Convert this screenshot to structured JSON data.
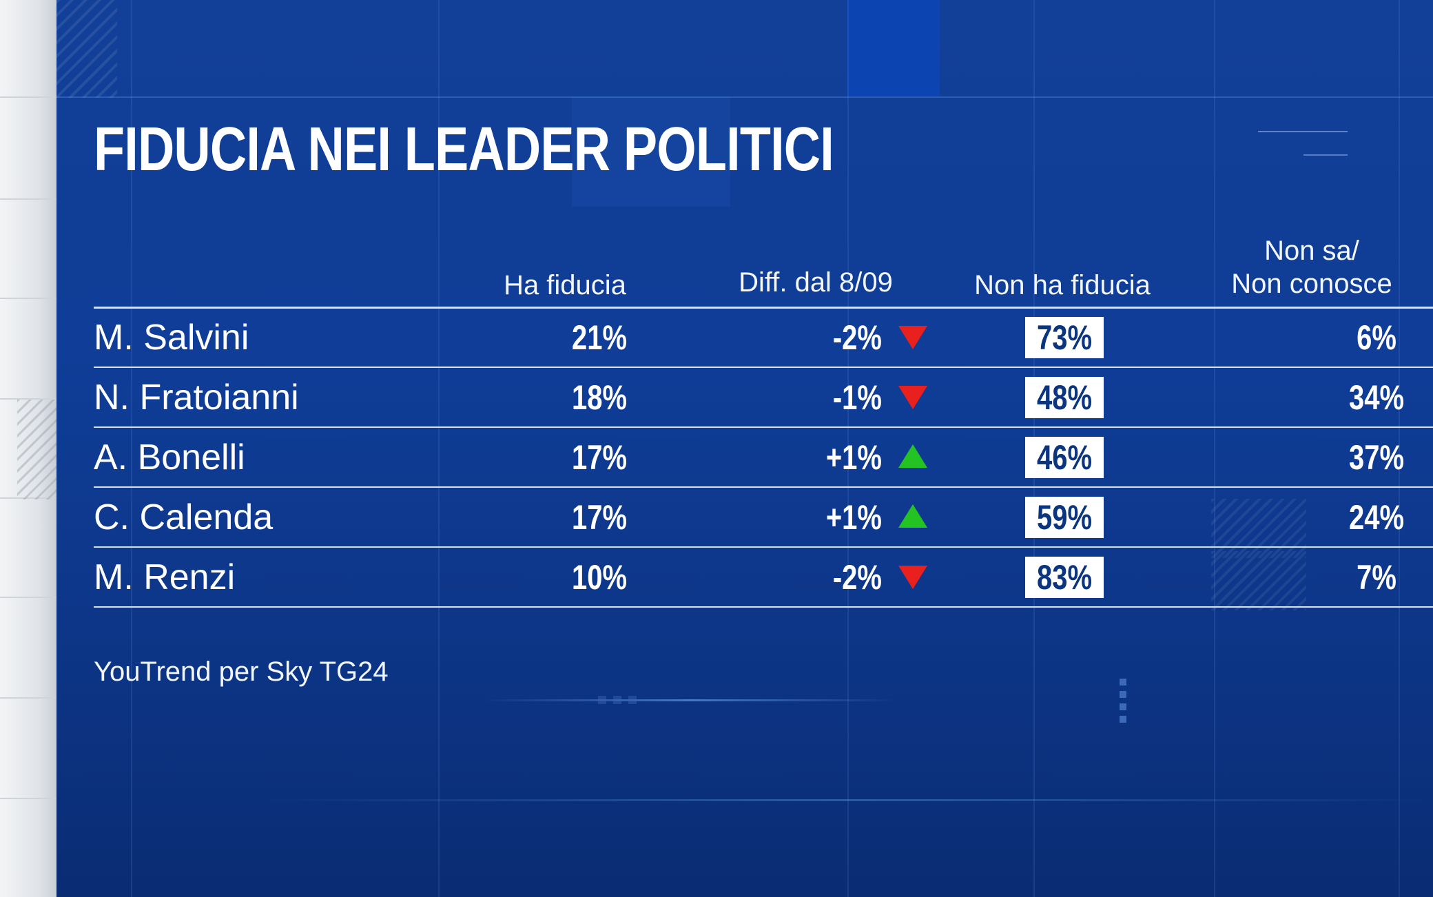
{
  "title": "FIDUCIA NEI LEADER POLITICI",
  "columns": {
    "trust": "Ha fiducia",
    "diff": "Diff. dal 8/09",
    "no_trust": "Non ha fiducia",
    "dont_know_line1": "Non sa/",
    "dont_know_line2": "Non conosce"
  },
  "rows": [
    {
      "name": "M. Salvini",
      "trust": "21%",
      "diff": "-2%",
      "trend": "down",
      "no_trust": "73%",
      "dont_know": "6%"
    },
    {
      "name": "N. Fratoianni",
      "trust": "18%",
      "diff": "-1%",
      "trend": "down",
      "no_trust": "48%",
      "dont_know": "34%"
    },
    {
      "name": "A. Bonelli",
      "trust": "17%",
      "diff": "+1%",
      "trend": "up",
      "no_trust": "46%",
      "dont_know": "37%"
    },
    {
      "name": "C. Calenda",
      "trust": "17%",
      "diff": "+1%",
      "trend": "up",
      "no_trust": "59%",
      "dont_know": "24%"
    },
    {
      "name": "M. Renzi",
      "trust": "10%",
      "diff": "-2%",
      "trend": "down",
      "no_trust": "83%",
      "dont_know": "7%"
    }
  ],
  "source": "YouTrend per Sky TG24",
  "colors": {
    "background": "#0f3d97",
    "down_arrow": "#e8211f",
    "up_arrow": "#23c323",
    "highlight_box": "#ffffff",
    "highlight_text": "#0c3580"
  }
}
